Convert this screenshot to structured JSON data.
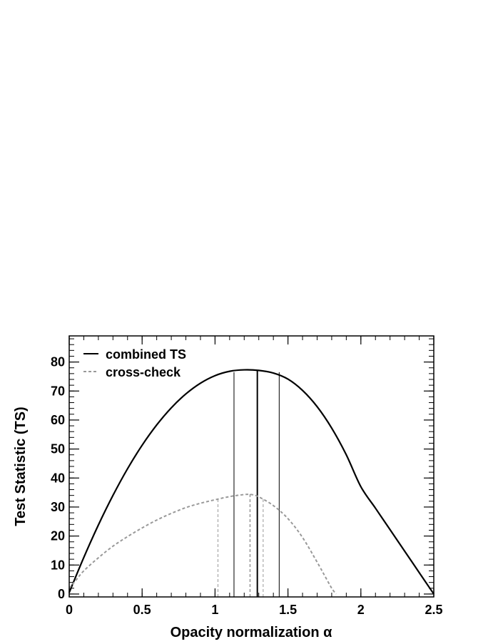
{
  "chart_data": {
    "type": "line",
    "title": "",
    "xlabel": "Opacity normalization α",
    "ylabel": "Test Statistic (TS)",
    "xlim": [
      0,
      2.5
    ],
    "ylim": [
      -1,
      89
    ],
    "x_ticks": [
      {
        "value": 0,
        "label": "0"
      },
      {
        "value": 0.5,
        "label": "0.5"
      },
      {
        "value": 1,
        "label": "1"
      },
      {
        "value": 1.5,
        "label": "1.5"
      },
      {
        "value": 2,
        "label": "2"
      },
      {
        "value": 2.5,
        "label": "2.5"
      }
    ],
    "y_ticks": [
      {
        "value": 0,
        "label": "0"
      },
      {
        "value": 10,
        "label": "10"
      },
      {
        "value": 20,
        "label": "20"
      },
      {
        "value": 30,
        "label": "30"
      },
      {
        "value": 40,
        "label": "40"
      },
      {
        "value": 50,
        "label": "50"
      },
      {
        "value": 60,
        "label": "60"
      },
      {
        "value": 70,
        "label": "70"
      },
      {
        "value": 80,
        "label": "80"
      }
    ],
    "grid": false,
    "legend_position": "top-left",
    "series": [
      {
        "name": "combined TS",
        "style": "solid",
        "color": "#000000",
        "x": [
          0,
          0.1,
          0.2,
          0.3,
          0.4,
          0.5,
          0.6,
          0.7,
          0.8,
          0.9,
          1.0,
          1.1,
          1.2,
          1.3,
          1.4,
          1.5,
          1.6,
          1.7,
          1.8,
          1.9,
          2.0,
          2.1,
          2.2,
          2.3,
          2.4,
          2.5
        ],
        "y": [
          0.5,
          12.6,
          23.8,
          34.0,
          43.2,
          51.3,
          58.3,
          64.2,
          69.0,
          72.7,
          75.3,
          76.8,
          77.3,
          77.1,
          76.2,
          74.1,
          70.2,
          64.6,
          57.2,
          48.0,
          37.0,
          29.6,
          22.2,
          14.8,
          7.4,
          0.0
        ]
      },
      {
        "name": "cross-check",
        "style": "dashed",
        "color": "#999999",
        "x": [
          0,
          0.05,
          0.1,
          0.2,
          0.3,
          0.4,
          0.5,
          0.6,
          0.7,
          0.8,
          0.9,
          1.0,
          1.1,
          1.2,
          1.25,
          1.3,
          1.4,
          1.5,
          1.6,
          1.7,
          1.75,
          1.8,
          1.83
        ],
        "y": [
          2.0,
          5.0,
          8.0,
          12.5,
          16.5,
          19.8,
          22.8,
          25.5,
          27.8,
          29.8,
          31.3,
          32.5,
          33.6,
          34.3,
          34.3,
          33.5,
          30.5,
          26.0,
          19.5,
          11.0,
          6.5,
          2.0,
          0.0
        ]
      }
    ],
    "vertical_lines": [
      {
        "series": "combined TS",
        "role": "best-fit",
        "x": 1.29,
        "y_top": 77.3,
        "width": 2
      },
      {
        "series": "combined TS",
        "role": "lower",
        "x": 1.13,
        "y_top": 76.5,
        "width": 1
      },
      {
        "series": "combined TS",
        "role": "upper",
        "x": 1.44,
        "y_top": 76.5,
        "width": 1
      },
      {
        "series": "cross-check",
        "role": "best-fit",
        "x": 1.24,
        "y_top": 34.4,
        "width": 1.5
      },
      {
        "series": "cross-check",
        "role": "lower",
        "x": 1.02,
        "y_top": 32.5,
        "width": 1
      },
      {
        "series": "cross-check",
        "role": "upper",
        "x": 1.33,
        "y_top": 33.0,
        "width": 1
      }
    ]
  }
}
